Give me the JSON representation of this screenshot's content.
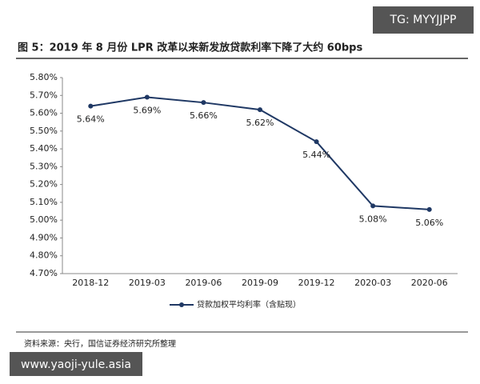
{
  "chart_data": {
    "type": "line",
    "title": "图 5：2019 年 8 月份 LPR 改革以来新发放贷款利率下降了大约 60bps",
    "categories": [
      "2018-12",
      "2019-03",
      "2019-06",
      "2019-09",
      "2019-12",
      "2020-03",
      "2020-06"
    ],
    "series": [
      {
        "name": "贷款加权平均利率（含贴现）",
        "color": "#1f3864",
        "values": [
          5.64,
          5.69,
          5.66,
          5.62,
          5.44,
          5.08,
          5.06
        ],
        "value_labels": [
          "5.64%",
          "5.69%",
          "5.66%",
          "5.62%",
          "5.44%",
          "5.08%",
          "5.06%"
        ]
      }
    ],
    "ylim": [
      4.7,
      5.8
    ],
    "yticks": [
      {
        "value": 4.7,
        "label": "4.70%"
      },
      {
        "value": 4.8,
        "label": "4.80%"
      },
      {
        "value": 4.9,
        "label": "4.90%"
      },
      {
        "value": 5.0,
        "label": "5.00%"
      },
      {
        "value": 5.1,
        "label": "5.10%"
      },
      {
        "value": 5.2,
        "label": "5.20%"
      },
      {
        "value": 5.3,
        "label": "5.30%"
      },
      {
        "value": 5.4,
        "label": "5.40%"
      },
      {
        "value": 5.5,
        "label": "5.50%"
      },
      {
        "value": 5.6,
        "label": "5.60%"
      },
      {
        "value": 5.7,
        "label": "5.70%"
      },
      {
        "value": 5.8,
        "label": "5.80%"
      }
    ],
    "grid": false,
    "legend": "bottom"
  },
  "source": "资料来源：央行，国信证券经济研究所整理",
  "watermark_top": "TG: MYYJJPP",
  "watermark_bottom": "www.yaoji-yule.asia"
}
